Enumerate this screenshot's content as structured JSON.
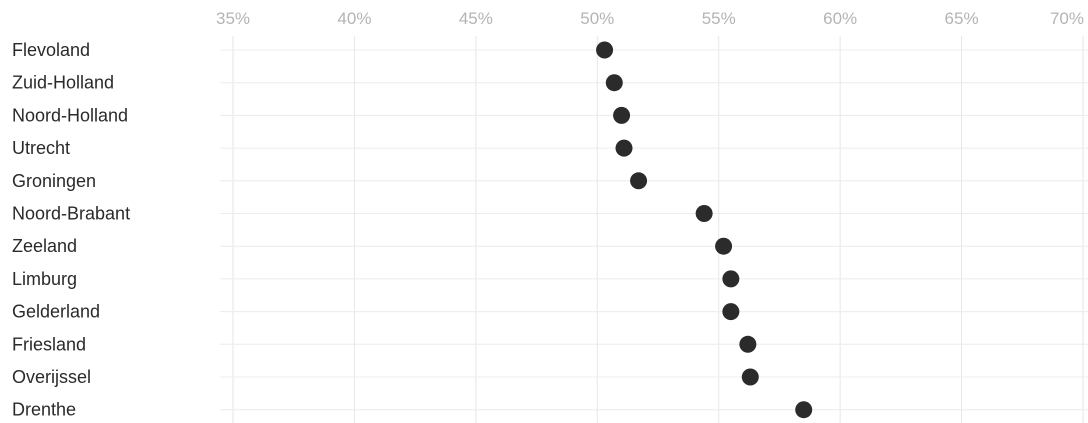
{
  "chart_data": {
    "type": "scatter",
    "title": "",
    "xlabel": "",
    "ylabel": "",
    "xlim": [
      0.35,
      0.7
    ],
    "x_ticks": [
      {
        "value": 0.35,
        "label": "35%"
      },
      {
        "value": 0.4,
        "label": "40%"
      },
      {
        "value": 0.45,
        "label": "45%"
      },
      {
        "value": 0.5,
        "label": "50%"
      },
      {
        "value": 0.55,
        "label": "55%"
      },
      {
        "value": 0.6,
        "label": "60%"
      },
      {
        "value": 0.65,
        "label": "65%"
      },
      {
        "value": 0.7,
        "label": "70%"
      }
    ],
    "axis_position": "top",
    "grid": true,
    "legend": "none",
    "categories": [
      "Flevoland",
      "Zuid-Holland",
      "Noord-Holland",
      "Utrecht",
      "Groningen",
      "Noord-Brabant",
      "Zeeland",
      "Limburg",
      "Gelderland",
      "Friesland",
      "Overijssel",
      "Drenthe"
    ],
    "values": [
      0.503,
      0.507,
      0.51,
      0.511,
      0.517,
      0.544,
      0.552,
      0.555,
      0.555,
      0.562,
      0.563,
      0.585
    ],
    "colors": {
      "dot": "#2b2b2b",
      "grid": "#e6e6e6",
      "tick_text": "#b4b4b4",
      "label_text": "#2a2a2a"
    }
  }
}
